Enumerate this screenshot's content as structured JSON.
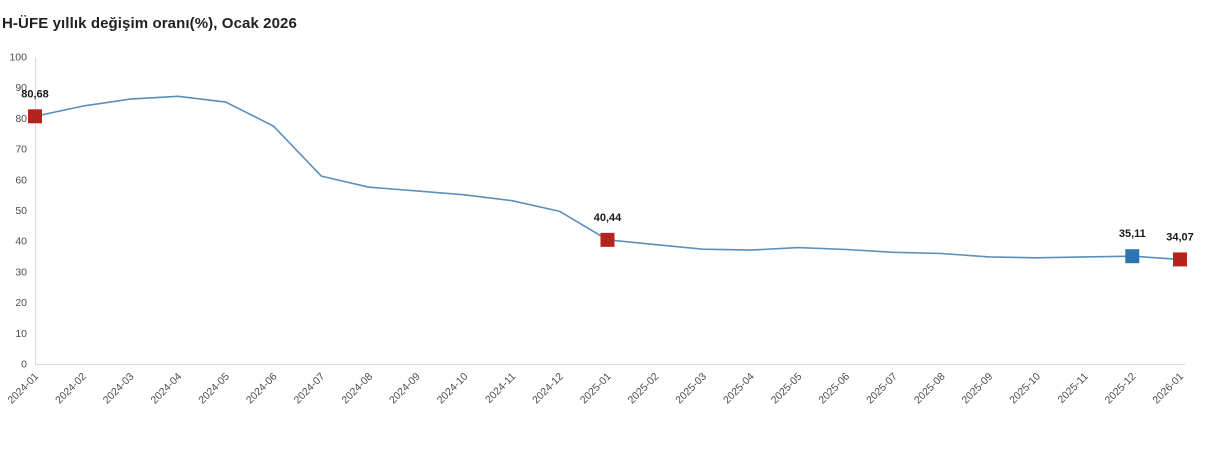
{
  "title": "H-ÜFE yıllık değişim oranı(%), Ocak 2026",
  "chart_data": {
    "type": "line",
    "title": "H-ÜFE yıllık değişim oranı(%), Ocak 2026",
    "xlabel": "",
    "ylabel": "",
    "ylim": [
      0,
      100
    ],
    "y_ticks": [
      0,
      10,
      20,
      30,
      40,
      50,
      60,
      70,
      80,
      90,
      100
    ],
    "grid": false,
    "legend": "none",
    "categories": [
      "2024-01",
      "2024-02",
      "2024-03",
      "2024-04",
      "2024-05",
      "2024-06",
      "2024-07",
      "2024-08",
      "2024-09",
      "2024-10",
      "2024-11",
      "2024-12",
      "2025-01",
      "2025-02",
      "2025-03",
      "2025-04",
      "2025-05",
      "2025-06",
      "2025-07",
      "2025-08",
      "2025-09",
      "2025-10",
      "2025-11",
      "2025-12",
      "2026-01"
    ],
    "values": [
      80.68,
      84.0,
      86.3,
      87.2,
      85.3,
      77.5,
      61.2,
      57.6,
      56.4,
      55.1,
      53.2,
      49.7,
      40.44,
      38.9,
      37.4,
      37.1,
      37.9,
      37.3,
      36.4,
      36.0,
      34.9,
      34.6,
      34.9,
      35.11,
      34.07
    ],
    "annotated_points": [
      {
        "index": 0,
        "label": "80,68",
        "marker_color": "#b5231d"
      },
      {
        "index": 12,
        "label": "40,44",
        "marker_color": "#b5231d"
      },
      {
        "index": 23,
        "label": "35,11",
        "marker_color": "#2e75b6"
      },
      {
        "index": 24,
        "label": "34,07",
        "marker_color": "#b5231d"
      }
    ],
    "colors": {
      "line": "#5a90bc",
      "axis_line": "#d9d9d9",
      "tick_text": "#4d4d4d",
      "annotation_text": "#1a1a1a",
      "title_text": "#1f1f24",
      "background": "#ffffff"
    }
  }
}
